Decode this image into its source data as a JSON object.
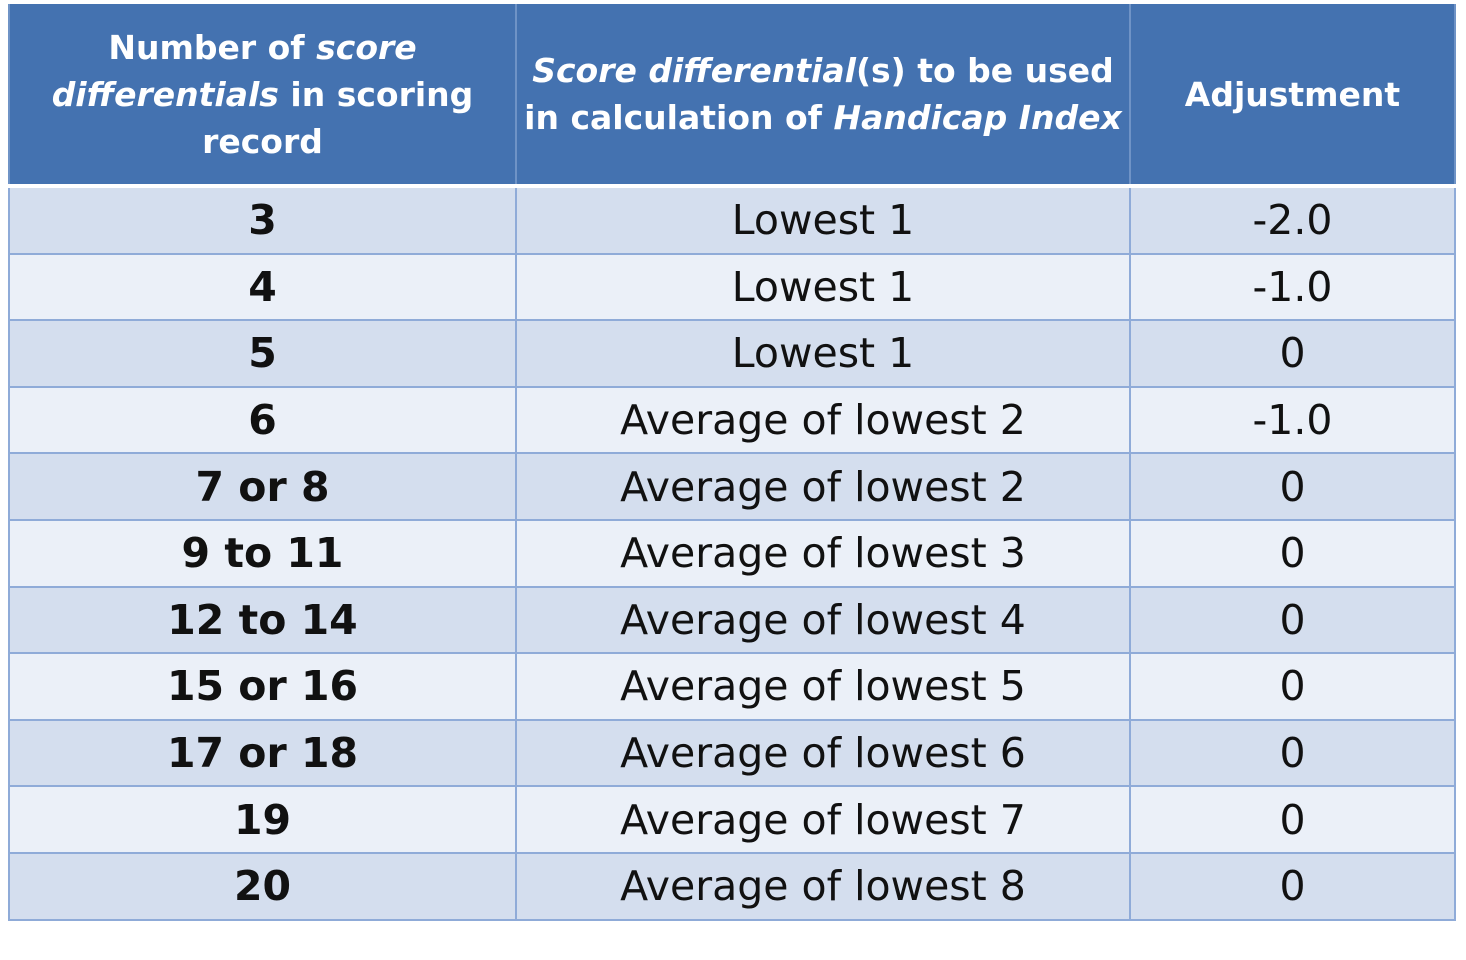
{
  "header": {
    "col1": {
      "pre": "Number of ",
      "em": "score differentials",
      "post": " in scoring record"
    },
    "col2": {
      "em1": "Score differential",
      "mid": "(s) to be used in calculation of ",
      "em2": "Handicap Index"
    },
    "col3": "Adjustment"
  },
  "rows": [
    {
      "count": "3",
      "used": "Lowest 1",
      "adjustment": "-2.0"
    },
    {
      "count": "4",
      "used": "Lowest 1",
      "adjustment": "-1.0"
    },
    {
      "count": "5",
      "used": "Lowest 1",
      "adjustment": "0"
    },
    {
      "count": "6",
      "used": "Average of lowest 2",
      "adjustment": "-1.0"
    },
    {
      "count": "7 or 8",
      "used": "Average of lowest 2",
      "adjustment": "0"
    },
    {
      "count": "9 to 11",
      "used": "Average of lowest 3",
      "adjustment": "0"
    },
    {
      "count": "12 to 14",
      "used": "Average of lowest 4",
      "adjustment": "0"
    },
    {
      "count": "15 or 16",
      "used": "Average of lowest 5",
      "adjustment": "0"
    },
    {
      "count": "17 or 18",
      "used": "Average of lowest 6",
      "adjustment": "0"
    },
    {
      "count": "19",
      "used": "Average of lowest 7",
      "adjustment": "0"
    },
    {
      "count": "20",
      "used": "Average of lowest 8",
      "adjustment": "0"
    }
  ],
  "colors": {
    "header_bg": "#4472b0",
    "row_dark": "#d4deee",
    "row_light": "#ebf0f8",
    "grid": "#8fabd8"
  }
}
